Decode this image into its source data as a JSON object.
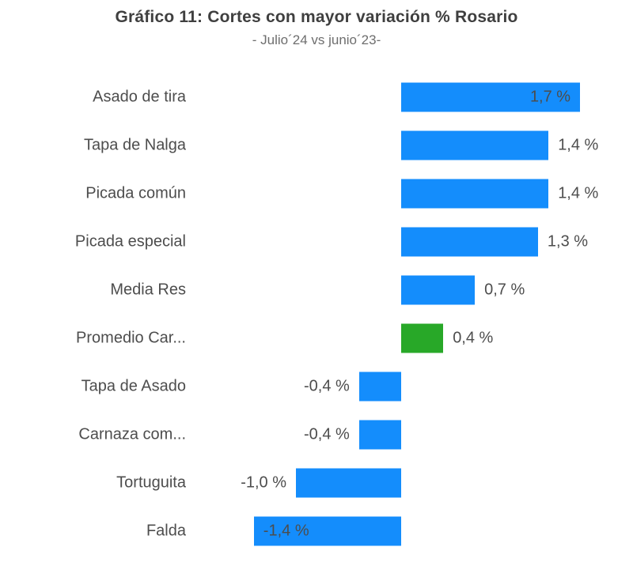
{
  "header": {
    "title": "Gráfico 11: Cortes con mayor variación % Rosario",
    "subtitle": "- Julio´24 vs junio´23-"
  },
  "colors": {
    "bar_default": "#148DFC",
    "bar_highlight": "#28A828",
    "title_text": "#3F3F3F",
    "subtitle_text": "#6E6E6E",
    "label_text": "#4D4D4D",
    "background": "#FFFFFF"
  },
  "chart_data": {
    "type": "bar",
    "orientation": "horizontal",
    "title": "Gráfico 11: Cortes con mayor variación % Rosario",
    "subtitle": "- Julio´24 vs junio´23-",
    "xlabel": "",
    "ylabel": "",
    "value_unit": "%",
    "xlim": [
      -2.1,
      1.9
    ],
    "grid": false,
    "legend": false,
    "categories": [
      "Asado de tira",
      "Tapa de Nalga",
      "Picada común",
      "Picada especial",
      "Media Res",
      "Promedio Car...",
      "Tapa de Asado",
      "Carnaza com...",
      "Tortuguita",
      "Falda"
    ],
    "values": [
      1.7,
      1.4,
      1.4,
      1.3,
      0.7,
      0.4,
      -0.4,
      -0.4,
      -1.0,
      -1.4
    ],
    "value_labels": [
      "1,7 %",
      "1,4 %",
      "1,4 %",
      "1,3 %",
      "0,7 %",
      "0,4 %",
      "-0,4 %",
      "-0,4 %",
      "-1,0 %",
      "-1,4 %"
    ],
    "bar_colors": [
      "#148DFC",
      "#148DFC",
      "#148DFC",
      "#148DFC",
      "#148DFC",
      "#28A828",
      "#148DFC",
      "#148DFC",
      "#148DFC",
      "#148DFC"
    ],
    "label_inside": [
      true,
      false,
      false,
      false,
      false,
      false,
      false,
      false,
      false,
      true
    ]
  }
}
